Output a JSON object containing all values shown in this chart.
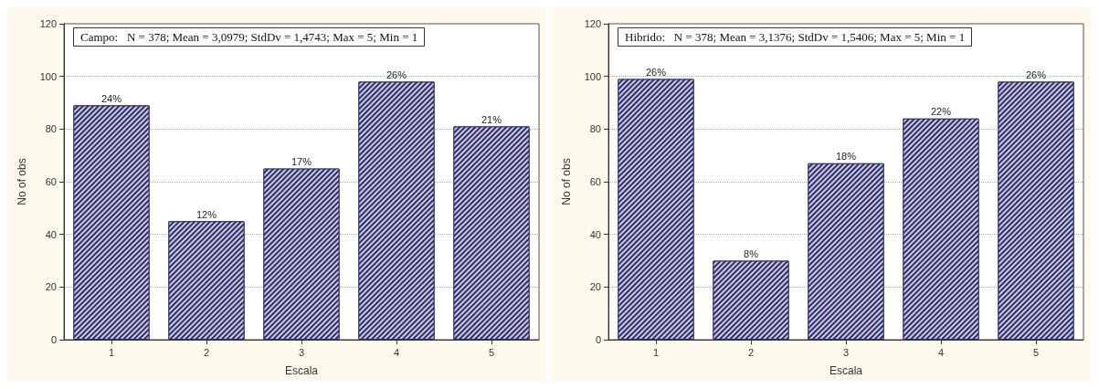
{
  "chart_data": [
    {
      "type": "bar",
      "title": "Campo:   N = 378; Mean = 3,0979; StdDv = 1,4743; Max = 5; Min = 1",
      "xlabel": "Escala",
      "ylabel": "No of obs",
      "categories": [
        "1",
        "2",
        "3",
        "4",
        "5"
      ],
      "values": [
        89,
        45,
        65,
        98,
        81
      ],
      "annotations": [
        {
          "text": "24%",
          "x": "1",
          "y": 89
        },
        {
          "text": "12%",
          "x": "2",
          "y": 45
        },
        {
          "text": "17%",
          "x": "3",
          "y": 65
        },
        {
          "text": "26%",
          "x": "4",
          "y": 98
        },
        {
          "text": "21%",
          "x": "5",
          "y": 81
        }
      ],
      "color": "#2e2e6e",
      "ylim": [
        0,
        120
      ],
      "yticks": [
        0,
        20,
        40,
        60,
        80,
        100,
        120
      ],
      "grid": "y"
    },
    {
      "type": "bar",
      "title": "Hibrido:   N = 378; Mean = 3,1376; StdDv = 1,5406; Max = 5; Min = 1",
      "xlabel": "Escala",
      "ylabel": "No of obs",
      "categories": [
        "1",
        "2",
        "3",
        "4",
        "5"
      ],
      "values": [
        99,
        30,
        67,
        84,
        98
      ],
      "annotations": [
        {
          "text": "26%",
          "x": "1",
          "y": 99
        },
        {
          "text": "8%",
          "x": "2",
          "y": 30
        },
        {
          "text": "18%",
          "x": "3",
          "y": 67
        },
        {
          "text": "22%",
          "x": "4",
          "y": 84
        },
        {
          "text": "26%",
          "x": "5",
          "y": 98
        }
      ],
      "color": "#2e2e6e",
      "ylim": [
        0,
        120
      ],
      "yticks": [
        0,
        20,
        40,
        60,
        80,
        100,
        120
      ],
      "grid": "y"
    }
  ]
}
